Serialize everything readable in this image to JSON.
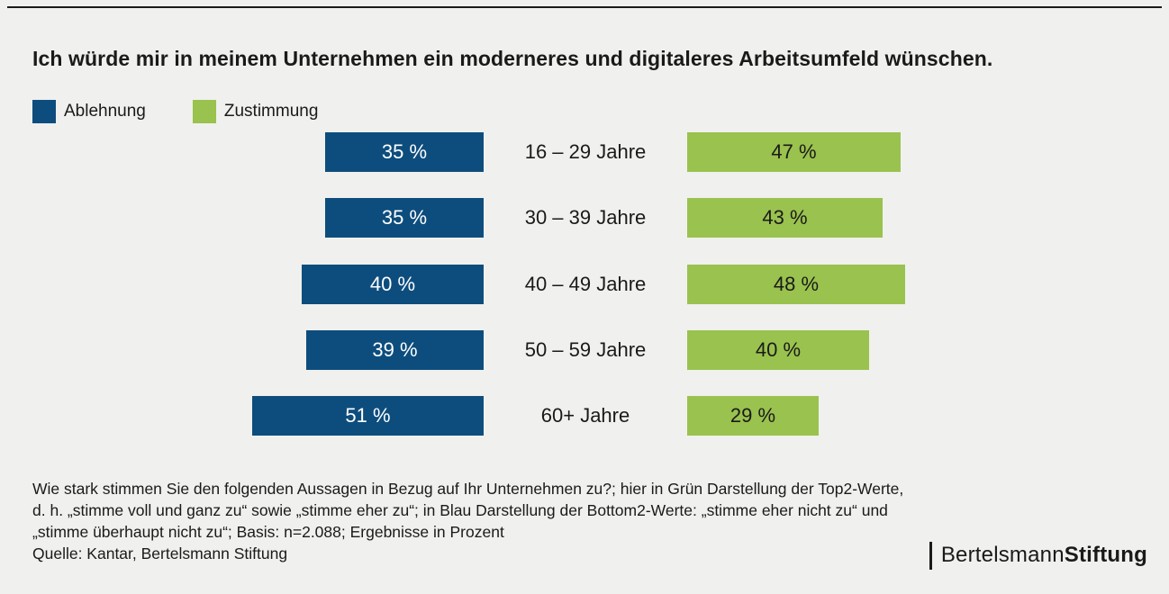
{
  "title": "Ich würde mir in meinem Unternehmen ein moderneres und digitaleres Arbeitsumfeld wünschen.",
  "legend": {
    "items": [
      {
        "label": "Ablehnung",
        "color": "#0d4d7d"
      },
      {
        "label": "Zustimmung",
        "color": "#9ac24e"
      }
    ]
  },
  "chart_data": {
    "type": "bar",
    "orientation": "diverging-horizontal",
    "categories": [
      "16 – 29 Jahre",
      "30 – 39 Jahre",
      "40 – 49 Jahre",
      "50 – 59 Jahre",
      "60+ Jahre"
    ],
    "series": [
      {
        "name": "Ablehnung",
        "side": "left",
        "color": "#0d4d7d",
        "values": [
          35,
          35,
          40,
          39,
          51
        ],
        "labels": [
          "35 %",
          "35 %",
          "40 %",
          "39 %",
          "51 %"
        ]
      },
      {
        "name": "Zustimmung",
        "side": "right",
        "color": "#9ac24e",
        "values": [
          47,
          43,
          48,
          40,
          29
        ],
        "labels": [
          "47 %",
          "43 %",
          "48 %",
          "40 %",
          "29 %"
        ]
      }
    ],
    "unit": "%",
    "value_range": [
      0,
      100
    ],
    "grid": false,
    "legend_position": "top-left"
  },
  "footnote": {
    "lines": [
      "Wie stark stimmen Sie den folgenden Aussagen in Bezug auf Ihr Unternehmen zu?; hier in Grün Darstellung der Top2-Werte,",
      "d. h. „stimme voll und ganz zu“ sowie „stimme eher zu“; in Blau Darstellung der Bottom2-Werte: „stimme eher nicht zu“ und",
      "„stimme überhaupt nicht zu“; Basis: n=2.088; Ergebnisse in Prozent",
      "Quelle: Kantar, Bertelsmann Stiftung"
    ]
  },
  "logo": {
    "text_regular": "Bertelsmann",
    "text_bold": "Stiftung"
  },
  "colors": {
    "background": "#f0f0ee",
    "blue": "#0d4d7d",
    "green": "#9ac24e",
    "text": "#1a1a1a"
  }
}
